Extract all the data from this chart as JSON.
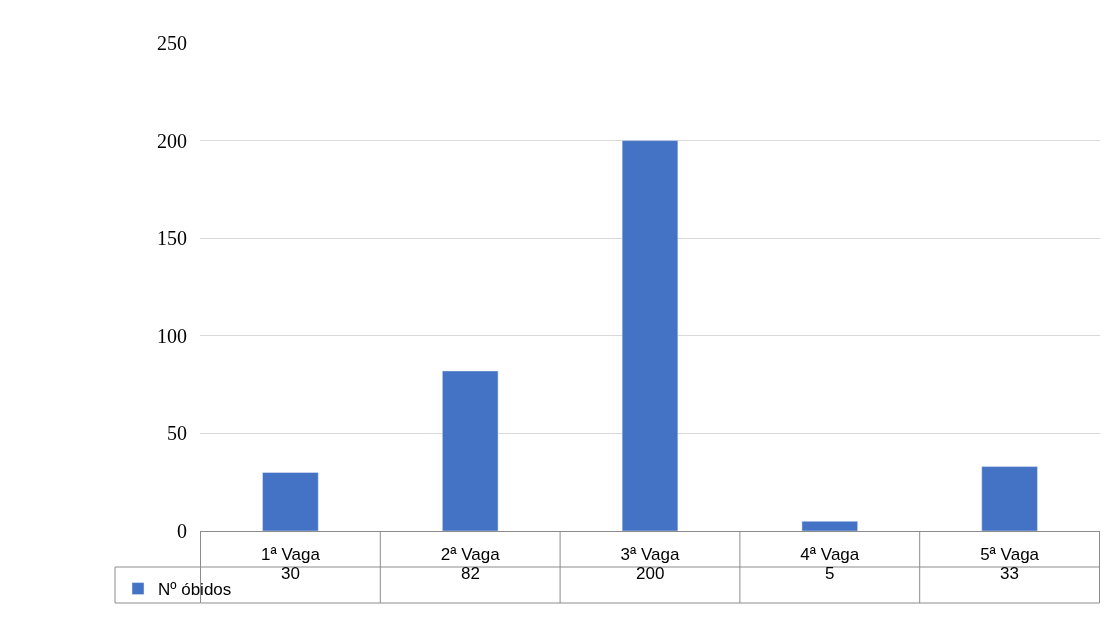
{
  "chart_data": {
    "type": "bar",
    "categories": [
      "1ª Vaga",
      "2ª Vaga",
      "3ª Vaga",
      "4ª Vaga",
      "5ª Vaga"
    ],
    "series": [
      {
        "name": "Nº óbidos",
        "color": "#4472c4",
        "values": [
          30,
          82,
          200,
          5,
          33
        ]
      }
    ],
    "ylim": [
      0,
      250
    ],
    "yticks": [
      0,
      50,
      100,
      150,
      200,
      250
    ],
    "grid": "y",
    "legend": "bottom left",
    "data_labels": true
  }
}
